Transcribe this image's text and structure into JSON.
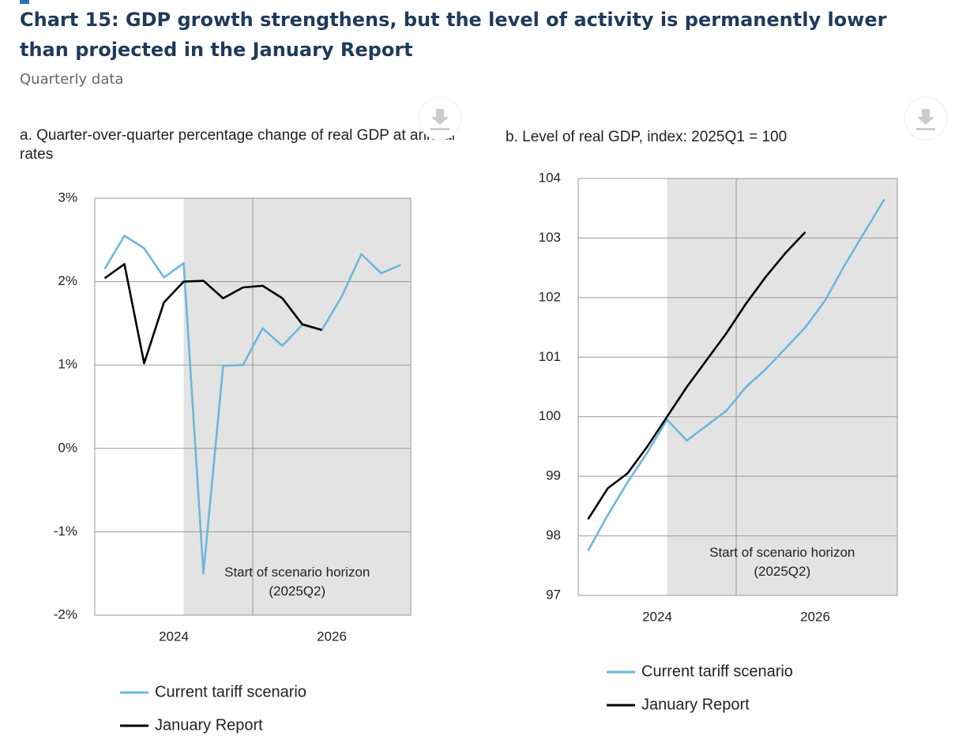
{
  "header": {
    "title": "Chart 15: GDP growth strengthens, but the level of activity is permanently lower than projected in the January Report",
    "subtitle": "Quarterly data"
  },
  "chart_data": [
    {
      "type": "line",
      "title": "a. Quarter-over-quarter percentage change of real GDP at annual rates",
      "categories": [
        null,
        null,
        null,
        "2024",
        null,
        null,
        null,
        null,
        null,
        null,
        null,
        "2026",
        null,
        null,
        null,
        null
      ],
      "series": [
        {
          "name": "Current tariff scenario",
          "color": "#6bb7dd",
          "values": [
            2.15,
            2.55,
            2.4,
            2.05,
            2.22,
            -1.5,
            0.99,
            1.0,
            1.44,
            1.23,
            1.48,
            1.42,
            1.82,
            2.33,
            2.1,
            2.2
          ]
        },
        {
          "name": "January Report",
          "color": "#000000",
          "values": [
            2.04,
            2.21,
            1.02,
            1.75,
            2.0,
            2.01,
            1.8,
            1.93,
            1.95,
            1.8,
            1.49,
            1.42,
            null,
            null,
            null,
            null
          ]
        }
      ],
      "ylim": [
        -2,
        3
      ],
      "yticks": [
        {
          "value": -2,
          "label": "-2%"
        },
        {
          "value": -1,
          "label": "-1%"
        },
        {
          "value": 0,
          "label": "0%"
        },
        {
          "value": 1,
          "label": "1%"
        },
        {
          "value": 2,
          "label": "2%"
        },
        {
          "value": 3,
          "label": "3%"
        }
      ],
      "grid": true,
      "annotation": "Start of scenario horizon (2025Q2)"
    },
    {
      "type": "line",
      "title": "b. Level of real GDP, index: 2025Q1 = 100",
      "categories": [
        null,
        null,
        null,
        "2024",
        null,
        null,
        null,
        null,
        null,
        null,
        null,
        "2026",
        null,
        null,
        null,
        null
      ],
      "series": [
        {
          "name": "Current tariff scenario",
          "color": "#6bb7dd",
          "values": [
            97.75,
            98.35,
            98.9,
            99.4,
            99.95,
            99.6,
            99.85,
            100.1,
            100.5,
            100.8,
            101.15,
            101.5,
            101.95,
            102.55,
            103.1,
            103.65
          ]
        },
        {
          "name": "January Report",
          "color": "#000000",
          "values": [
            98.28,
            98.8,
            99.05,
            99.5,
            100.0,
            100.5,
            100.95,
            101.4,
            101.9,
            102.35,
            102.75,
            103.1,
            null,
            null,
            null,
            null
          ]
        }
      ],
      "ylim": [
        97,
        104
      ],
      "yticks": [
        97,
        98,
        99,
        100,
        101,
        102,
        103,
        104
      ],
      "grid": true,
      "annotation": "Start of scenario horizon (2025Q2)"
    }
  ]
}
